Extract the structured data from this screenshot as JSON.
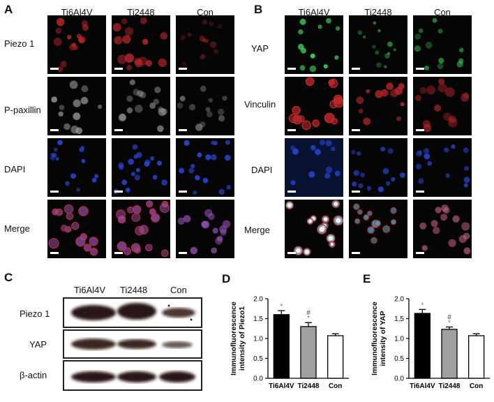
{
  "panelA": {
    "letter": "A",
    "columns": [
      "Ti6Al4V",
      "Ti2448",
      "Con"
    ],
    "rows": [
      "Piezo 1",
      "P-paxillin",
      "DAPI",
      "Merge"
    ]
  },
  "panelB": {
    "letter": "B",
    "columns": [
      "Ti6Al4V",
      "Ti2448",
      "Con"
    ],
    "rows": [
      "YAP",
      "Vinculin",
      "DAPI",
      "Merge"
    ]
  },
  "panelC": {
    "letter": "C",
    "columns": [
      "Ti6Al4V",
      "Ti2448",
      "Con"
    ],
    "rows": [
      "Piezo 1",
      "YAP",
      "β-actin"
    ]
  },
  "panelD": {
    "letter": "D",
    "chart_data": {
      "type": "bar",
      "categories": [
        "Ti6Al4V",
        "Ti2448",
        "Con"
      ],
      "values": [
        1.6,
        1.3,
        1.07
      ],
      "errors": [
        0.1,
        0.1,
        0.05
      ],
      "marks": [
        "*",
        "*#",
        ""
      ],
      "ylabel_line1": "Immunofluorescence",
      "ylabel_line2": "intensity of Piezo1",
      "ylim": [
        0,
        2.0
      ],
      "yticks": [
        "0.0",
        "0.5",
        "1.0",
        "1.5",
        "2.0"
      ],
      "colors": [
        "#000000",
        "#a0a0a0",
        "#ffffff"
      ]
    }
  },
  "panelE": {
    "letter": "E",
    "chart_data": {
      "type": "bar",
      "categories": [
        "Ti6Al4V",
        "Ti2448",
        "Con"
      ],
      "values": [
        1.63,
        1.23,
        1.07
      ],
      "errors": [
        0.1,
        0.06,
        0.05
      ],
      "marks": [
        "*",
        "*#",
        ""
      ],
      "ylabel_line1": "Immunofluorescence",
      "ylabel_line2": "intensity of YAP",
      "ylim": [
        0,
        2.0
      ],
      "yticks": [
        "0.0",
        "0.5",
        "1.0",
        "1.5",
        "2.0"
      ],
      "colors": [
        "#000000",
        "#a0a0a0",
        "#ffffff"
      ]
    }
  },
  "colors": {
    "red": "#c0282c",
    "green": "#3fd05a",
    "blue": "#2848d8",
    "gray": "#9a9a9a",
    "purple": "#9050b0",
    "cyan": "#a8e8ff"
  }
}
